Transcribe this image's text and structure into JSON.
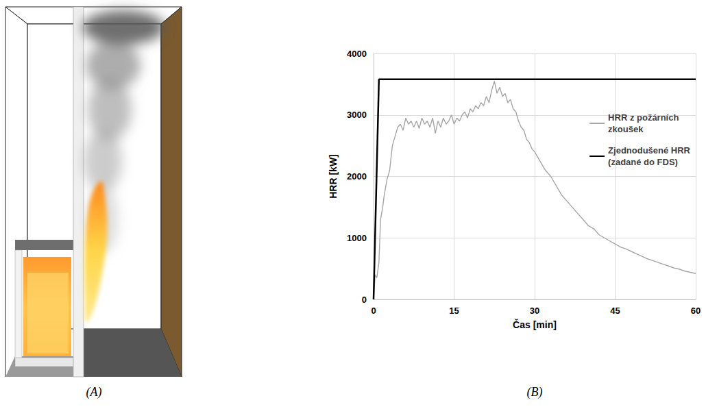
{
  "chart_data": {
    "type": "line",
    "xlabel": "Čas [min]",
    "ylabel": "HRR [kW]",
    "xlim": [
      0,
      60
    ],
    "xticks": [
      0,
      15,
      30,
      45,
      60
    ],
    "ylim": [
      0,
      4000
    ],
    "yticks": [
      0,
      1000,
      2000,
      3000,
      4000
    ],
    "grid": true,
    "legend": "right",
    "series": [
      {
        "name": "HRR z požárních zkoušek",
        "color": "#a6a6a6",
        "x": [
          0,
          0.3,
          0.6,
          1,
          1.3,
          1.7,
          2,
          2.5,
          3,
          3.5,
          4,
          4.5,
          5,
          5.5,
          6,
          6.5,
          7,
          7.5,
          8,
          8.5,
          9,
          9.5,
          10,
          10.5,
          11,
          11.5,
          12,
          12.5,
          13,
          13.5,
          14,
          14.5,
          15,
          15.5,
          16,
          16.5,
          17,
          17.5,
          18,
          18.5,
          19,
          19.5,
          20,
          20.5,
          21,
          21.5,
          22,
          22.5,
          23,
          23.5,
          24,
          24.5,
          25,
          25.5,
          26,
          26.5,
          27,
          27.5,
          28,
          28.5,
          29,
          29.5,
          30,
          31,
          32,
          33,
          34,
          35,
          36,
          37,
          38,
          39,
          40,
          41,
          42,
          43,
          44,
          45,
          46,
          47,
          48,
          49,
          50,
          51,
          52,
          53,
          54,
          55,
          56,
          57,
          58,
          59,
          60
        ],
        "values": [
          0,
          400,
          350,
          600,
          1300,
          1500,
          1700,
          1950,
          2100,
          2500,
          2650,
          2800,
          2850,
          2750,
          2950,
          2850,
          2900,
          2800,
          2900,
          2780,
          2950,
          2850,
          2900,
          2800,
          2950,
          2700,
          2900,
          2800,
          2950,
          2850,
          2900,
          3000,
          2850,
          2950,
          2900,
          3000,
          3050,
          2950,
          3100,
          3050,
          3150,
          3100,
          3200,
          3150,
          3300,
          3200,
          3400,
          3550,
          3350,
          3450,
          3300,
          3350,
          3200,
          3250,
          3100,
          3050,
          2900,
          2800,
          2750,
          2600,
          2550,
          2450,
          2400,
          2250,
          2100,
          2000,
          1850,
          1700,
          1600,
          1500,
          1400,
          1300,
          1200,
          1150,
          1050,
          1000,
          950,
          900,
          850,
          820,
          780,
          740,
          700,
          660,
          630,
          600,
          570,
          540,
          510,
          490,
          460,
          440,
          420
        ]
      },
      {
        "name": "Zjednodušené HRR (zadané do FDS)",
        "color": "#000000",
        "x": [
          0,
          1,
          60
        ],
        "values": [
          0,
          3580,
          3580
        ]
      }
    ]
  },
  "panel_labels": [
    "(A)",
    "(B)"
  ]
}
